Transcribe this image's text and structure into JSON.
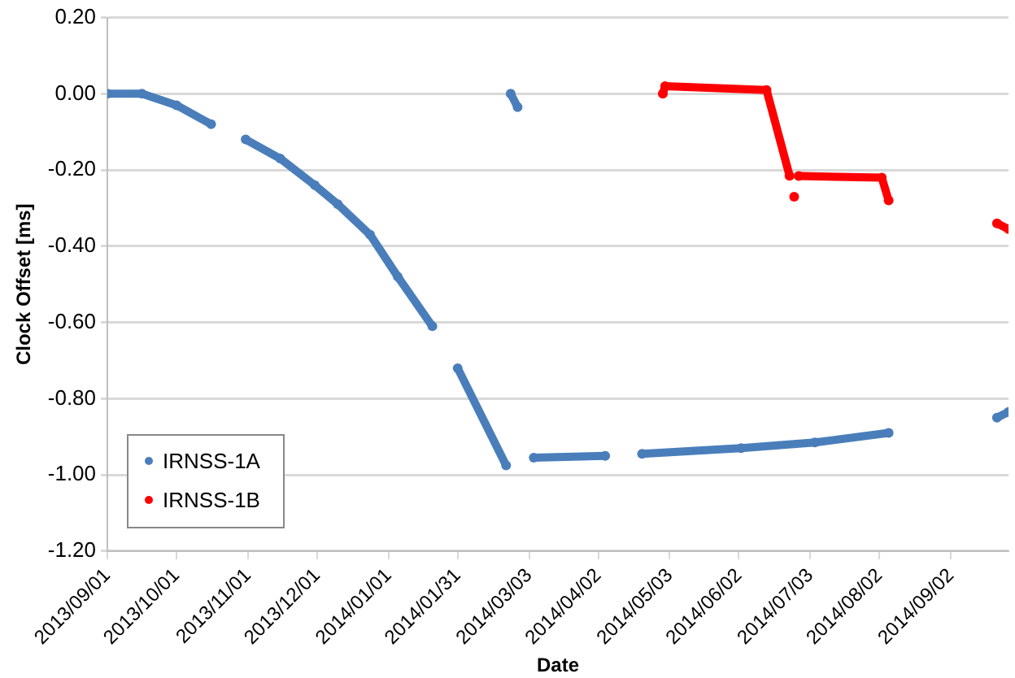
{
  "chart_data": {
    "type": "line",
    "xlabel": "Date",
    "ylabel": "Clock Offset [ms]",
    "xlim": [
      "2013-09-01",
      "2014-09-27"
    ],
    "xticks": [
      {
        "value": "2013-09-01",
        "label": "2013/09/01"
      },
      {
        "value": "2013-10-01",
        "label": "2013/10/01"
      },
      {
        "value": "2013-11-01",
        "label": "2013/11/01"
      },
      {
        "value": "2013-12-01",
        "label": "2013/12/01"
      },
      {
        "value": "2014-01-01",
        "label": "2014/01/01"
      },
      {
        "value": "2014-01-31",
        "label": "2014/01/31"
      },
      {
        "value": "2014-03-03",
        "label": "2014/03/03"
      },
      {
        "value": "2014-04-02",
        "label": "2014/04/02"
      },
      {
        "value": "2014-05-03",
        "label": "2014/05/03"
      },
      {
        "value": "2014-06-02",
        "label": "2014/06/02"
      },
      {
        "value": "2014-07-03",
        "label": "2014/07/03"
      },
      {
        "value": "2014-08-02",
        "label": "2014/08/02"
      },
      {
        "value": "2014-09-02",
        "label": "2014/09/02"
      }
    ],
    "ylim": [
      -1.2,
      0.2
    ],
    "yticks": [
      {
        "value": 0.2,
        "label": "0.20"
      },
      {
        "value": 0,
        "label": "0.00"
      },
      {
        "value": -0.2,
        "label": "-0.20"
      },
      {
        "value": -0.4,
        "label": "-0.40"
      },
      {
        "value": -0.6,
        "label": "-0.60"
      },
      {
        "value": -0.8,
        "label": "-0.80"
      },
      {
        "value": -1,
        "label": "-1.00"
      },
      {
        "value": -1.2,
        "label": "-1.20"
      }
    ],
    "grid": "y",
    "legend": "bottom left",
    "marker": "circle",
    "series": [
      {
        "name": "IRNSS-1A",
        "color": "#4a7ebb",
        "x": [
          "2013-09-01",
          "2013-09-16",
          "2013-10-01",
          "2013-10-16",
          "2013-10-23",
          "2013-10-31",
          "2013-11-15",
          "2013-11-30",
          "2013-12-10",
          "2013-12-24",
          "2014-01-05",
          "2014-01-20",
          "2014-01-25",
          "2014-01-31",
          "2014-02-21",
          "2014-02-22",
          "2014-02-23",
          "2014-02-26",
          "2014-03-01",
          "2014-03-05",
          "2014-04-05",
          "2014-04-13",
          "2014-04-21",
          "2014-06-03",
          "2014-07-05",
          "2014-08-06",
          "2014-08-30",
          "2014-09-22",
          "2014-09-27"
        ],
        "values": [
          0,
          0,
          -0.03,
          -0.08,
          null,
          -0.12,
          -0.17,
          -0.24,
          -0.29,
          -0.37,
          -0.48,
          -0.61,
          null,
          -0.72,
          -0.975,
          null,
          0,
          -0.035,
          null,
          -0.955,
          -0.95,
          null,
          -0.945,
          -0.93,
          -0.915,
          -0.89,
          null,
          -0.85,
          -0.835
        ]
      },
      {
        "name": "IRNSS-1B",
        "color": "#ff0000",
        "x": [
          "2014-04-30",
          "2014-05-01",
          "2014-06-14",
          "2014-06-24",
          "2014-06-25",
          "2014-06-26",
          "2014-06-27",
          "2014-06-28",
          "2014-08-03",
          "2014-08-06",
          "2014-08-20",
          "2014-09-22",
          "2014-09-27"
        ],
        "values": [
          0,
          0.02,
          0.01,
          -0.215,
          null,
          -0.27,
          null,
          -0.216,
          -0.22,
          -0.28,
          null,
          -0.34,
          -0.355
        ]
      }
    ]
  }
}
